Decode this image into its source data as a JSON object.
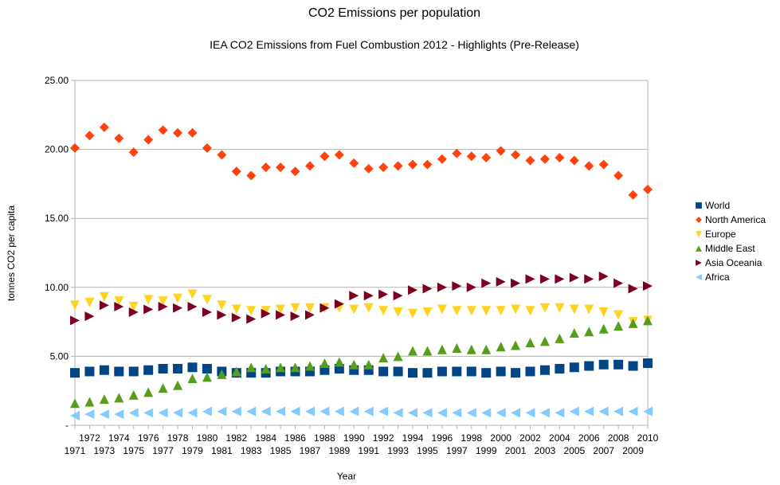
{
  "chart_data": {
    "type": "scatter",
    "title": "CO2 Emissions per population",
    "subtitle": "IEA CO2 Emissions from Fuel Combustion 2012 - Highlights (Pre-Release)",
    "xlabel": "Year",
    "ylabel": "tonnes CO2 per capita",
    "ylim": [
      0,
      25
    ],
    "yticks": [
      0,
      5,
      10,
      15,
      20,
      25
    ],
    "ytick_labels": [
      "-",
      "5.00",
      "10.00",
      "15.00",
      "20.00",
      "25.00"
    ],
    "grid": "horizontal",
    "legend_position": "right",
    "categories": [
      1971,
      1972,
      1973,
      1974,
      1975,
      1976,
      1977,
      1978,
      1979,
      1980,
      1981,
      1982,
      1983,
      1984,
      1985,
      1986,
      1987,
      1988,
      1989,
      1990,
      1991,
      1992,
      1993,
      1994,
      1995,
      1996,
      1997,
      1998,
      1999,
      2000,
      2001,
      2002,
      2003,
      2004,
      2005,
      2006,
      2007,
      2008,
      2009,
      2010
    ],
    "series": [
      {
        "name": "World",
        "marker": "square",
        "color": "#004586",
        "values": [
          3.8,
          3.9,
          4.0,
          3.9,
          3.9,
          4.0,
          4.1,
          4.1,
          4.2,
          4.1,
          3.9,
          3.8,
          3.8,
          3.8,
          3.9,
          3.9,
          3.9,
          4.0,
          4.1,
          4.0,
          4.0,
          3.9,
          3.9,
          3.8,
          3.8,
          3.9,
          3.9,
          3.9,
          3.8,
          3.9,
          3.8,
          3.9,
          4.0,
          4.1,
          4.2,
          4.3,
          4.4,
          4.4,
          4.3,
          4.5
        ]
      },
      {
        "name": "North America",
        "marker": "diamond",
        "color": "#ff420e",
        "values": [
          20.1,
          21.0,
          21.6,
          20.8,
          19.8,
          20.7,
          21.4,
          21.2,
          21.2,
          20.1,
          19.6,
          18.4,
          18.1,
          18.7,
          18.7,
          18.4,
          18.8,
          19.5,
          19.6,
          19.0,
          18.6,
          18.7,
          18.8,
          18.9,
          18.9,
          19.3,
          19.7,
          19.5,
          19.4,
          19.9,
          19.6,
          19.2,
          19.3,
          19.4,
          19.2,
          18.8,
          18.9,
          18.1,
          16.7,
          17.1
        ]
      },
      {
        "name": "Europe",
        "marker": "triangle-down",
        "color": "#ffd320",
        "values": [
          8.7,
          8.9,
          9.3,
          9.0,
          8.6,
          9.1,
          9.0,
          9.2,
          9.5,
          9.1,
          8.7,
          8.4,
          8.3,
          8.3,
          8.4,
          8.5,
          8.5,
          8.5,
          8.5,
          8.4,
          8.5,
          8.3,
          8.2,
          8.1,
          8.2,
          8.4,
          8.3,
          8.3,
          8.3,
          8.3,
          8.4,
          8.3,
          8.5,
          8.5,
          8.4,
          8.4,
          8.2,
          8.0,
          7.5,
          7.6
        ]
      },
      {
        "name": "Middle East",
        "marker": "triangle-up",
        "color": "#579d1c",
        "values": [
          1.6,
          1.7,
          1.9,
          2.0,
          2.2,
          2.4,
          2.7,
          2.9,
          3.4,
          3.5,
          3.7,
          3.9,
          4.2,
          4.1,
          4.2,
          4.2,
          4.3,
          4.5,
          4.6,
          4.4,
          4.4,
          4.9,
          5.0,
          5.4,
          5.4,
          5.5,
          5.6,
          5.5,
          5.5,
          5.7,
          5.8,
          6.0,
          6.1,
          6.3,
          6.7,
          6.8,
          7.0,
          7.2,
          7.4,
          7.6
        ]
      },
      {
        "name": "Asia Oceania",
        "marker": "triangle-right",
        "color": "#7e0021",
        "values": [
          7.6,
          7.9,
          8.7,
          8.6,
          8.2,
          8.4,
          8.6,
          8.5,
          8.6,
          8.2,
          8.0,
          7.8,
          7.7,
          8.1,
          8.0,
          7.9,
          8.0,
          8.5,
          8.8,
          9.4,
          9.4,
          9.5,
          9.4,
          9.8,
          9.9,
          10.0,
          10.1,
          10.0,
          10.3,
          10.4,
          10.3,
          10.6,
          10.6,
          10.6,
          10.7,
          10.6,
          10.8,
          10.3,
          9.9,
          10.1
        ]
      },
      {
        "name": "Africa",
        "marker": "triangle-left",
        "color": "#83caff",
        "values": [
          0.7,
          0.8,
          0.8,
          0.8,
          0.9,
          0.9,
          0.9,
          0.9,
          0.9,
          1.0,
          1.0,
          1.0,
          1.0,
          1.0,
          1.0,
          1.0,
          1.0,
          1.0,
          1.0,
          1.0,
          1.0,
          1.0,
          0.9,
          0.9,
          0.9,
          0.9,
          0.9,
          0.9,
          0.9,
          0.9,
          0.9,
          0.9,
          0.9,
          0.9,
          1.0,
          1.0,
          1.0,
          1.0,
          1.0,
          1.0
        ]
      }
    ]
  }
}
